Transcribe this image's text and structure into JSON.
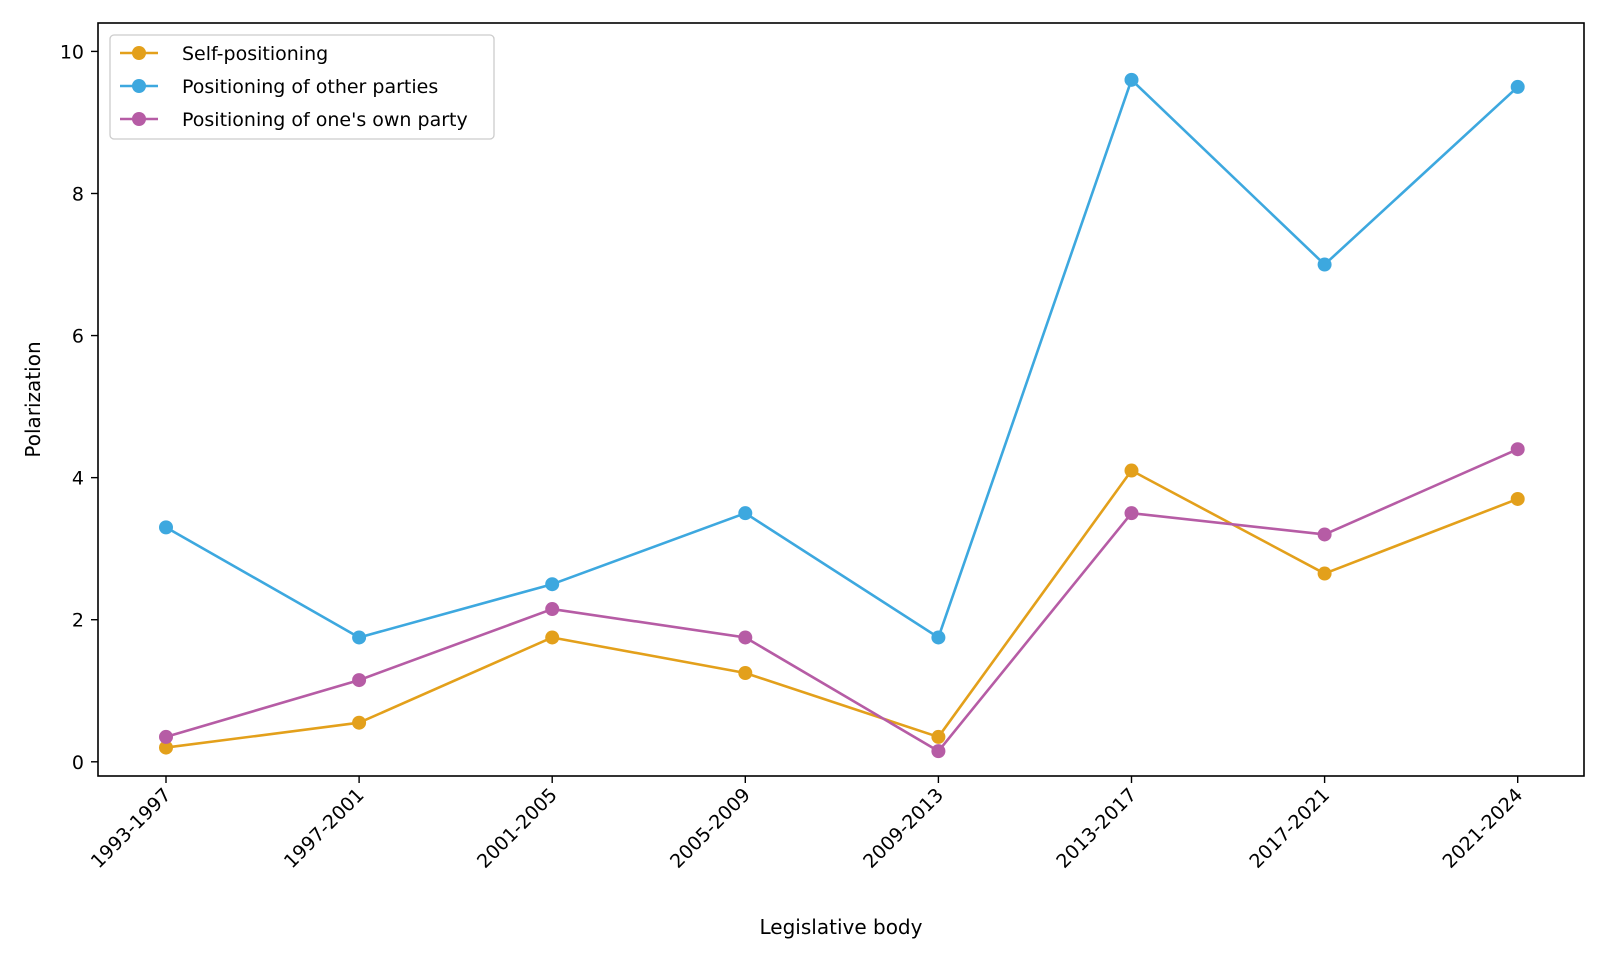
{
  "chart_data": {
    "type": "line",
    "title": "",
    "xlabel": "Legislative body",
    "ylabel": "Polarization",
    "categories": [
      "1993-1997",
      "1997-2001",
      "2001-2005",
      "2005-2009",
      "2009-2013",
      "2013-2017",
      "2017-2021",
      "2021-2024"
    ],
    "ylim": [
      -0.2,
      10.4
    ],
    "yticks": [
      0,
      2,
      4,
      6,
      8,
      10
    ],
    "grid": false,
    "legend_position": "top-left",
    "series": [
      {
        "name": "Self-positioning",
        "color": "#E3A01B",
        "values": [
          0.2,
          0.55,
          1.75,
          1.25,
          0.35,
          4.1,
          2.65,
          3.7
        ]
      },
      {
        "name": "Positioning of other parties",
        "color": "#3DA8DF",
        "values": [
          3.3,
          1.75,
          2.5,
          3.5,
          1.75,
          9.6,
          7.0,
          9.5
        ]
      },
      {
        "name": "Positioning of one's own party",
        "color": "#B65CA5",
        "values": [
          0.35,
          1.15,
          2.15,
          1.75,
          0.15,
          3.5,
          3.2,
          4.4
        ]
      }
    ]
  }
}
